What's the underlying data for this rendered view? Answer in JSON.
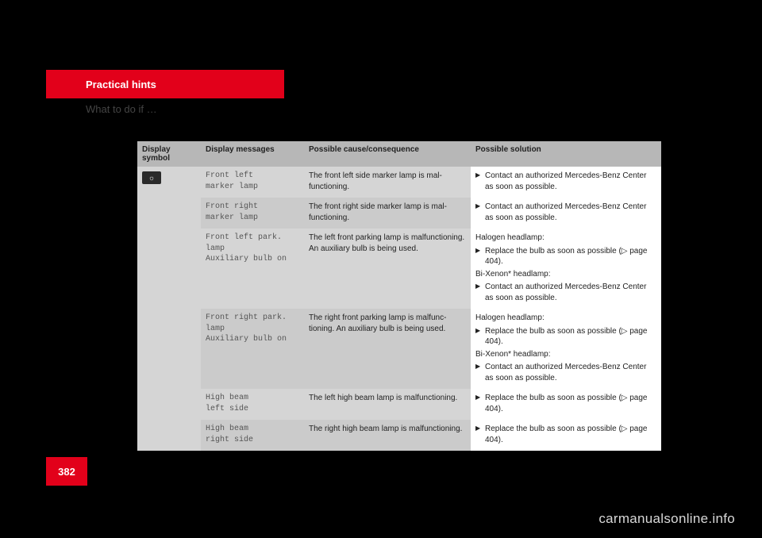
{
  "header": {
    "tab": "Practical hints",
    "section": "What to do if …"
  },
  "pageNumber": "382",
  "watermark": "carmanualsonline.info",
  "table": {
    "headers": {
      "symbol": "Display symbol",
      "messages": "Display messages",
      "cause": "Possible cause/consequence",
      "solution": "Possible solution"
    },
    "iconGlyph": "☼",
    "rows": [
      {
        "msg1": "Front left",
        "msg2": "marker lamp",
        "cause": "The front left side marker lamp is mal­functioning.",
        "sol": [
          {
            "type": "li",
            "text": "Contact an authorized Mercedes-Benz Center as soon as possible."
          }
        ]
      },
      {
        "msg1": "Front right",
        "msg2": "marker lamp",
        "cause": "The front right side marker lamp is mal­functioning.",
        "sol": [
          {
            "type": "li",
            "text": "Contact an authorized Mercedes-Benz Center as soon as possible."
          }
        ]
      },
      {
        "msg1": "Front left park. lamp",
        "msg2": "Auxiliary bulb on",
        "cause": "The left front parking lamp is malfunction­ing. An auxiliary bulb is being used.",
        "sol": [
          {
            "type": "p",
            "text": "Halogen headlamp:"
          },
          {
            "type": "li",
            "text": "Replace the bulb as soon as possible (▷ page 404)."
          },
          {
            "type": "p",
            "text": "Bi-Xenon* headlamp:"
          },
          {
            "type": "li",
            "text": "Contact an authorized Mercedes-Benz Center as soon as possible."
          }
        ]
      },
      {
        "msg1": "Front right park. lamp",
        "msg2": "Auxiliary bulb on",
        "cause": "The right front parking lamp is malfunc­tioning. An auxiliary bulb is being used.",
        "sol": [
          {
            "type": "p",
            "text": "Halogen headlamp:"
          },
          {
            "type": "li",
            "text": "Replace the bulb as soon as possible (▷ page 404)."
          },
          {
            "type": "p",
            "text": "Bi-Xenon* headlamp:"
          },
          {
            "type": "li",
            "text": "Contact an authorized Mercedes-Benz Center as soon as possible."
          }
        ]
      },
      {
        "msg1": "High beam",
        "msg2": "left side",
        "cause": "The left high beam lamp is malfunction­ing.",
        "sol": [
          {
            "type": "li",
            "text": "Replace the bulb as soon as possible (▷ page 404)."
          }
        ]
      },
      {
        "msg1": "High beam",
        "msg2": "right side",
        "cause": "The right high beam lamp is malfunction­ing.",
        "sol": [
          {
            "type": "li",
            "text": "Replace the bulb as soon as possible (▷ page 404)."
          }
        ]
      }
    ]
  }
}
